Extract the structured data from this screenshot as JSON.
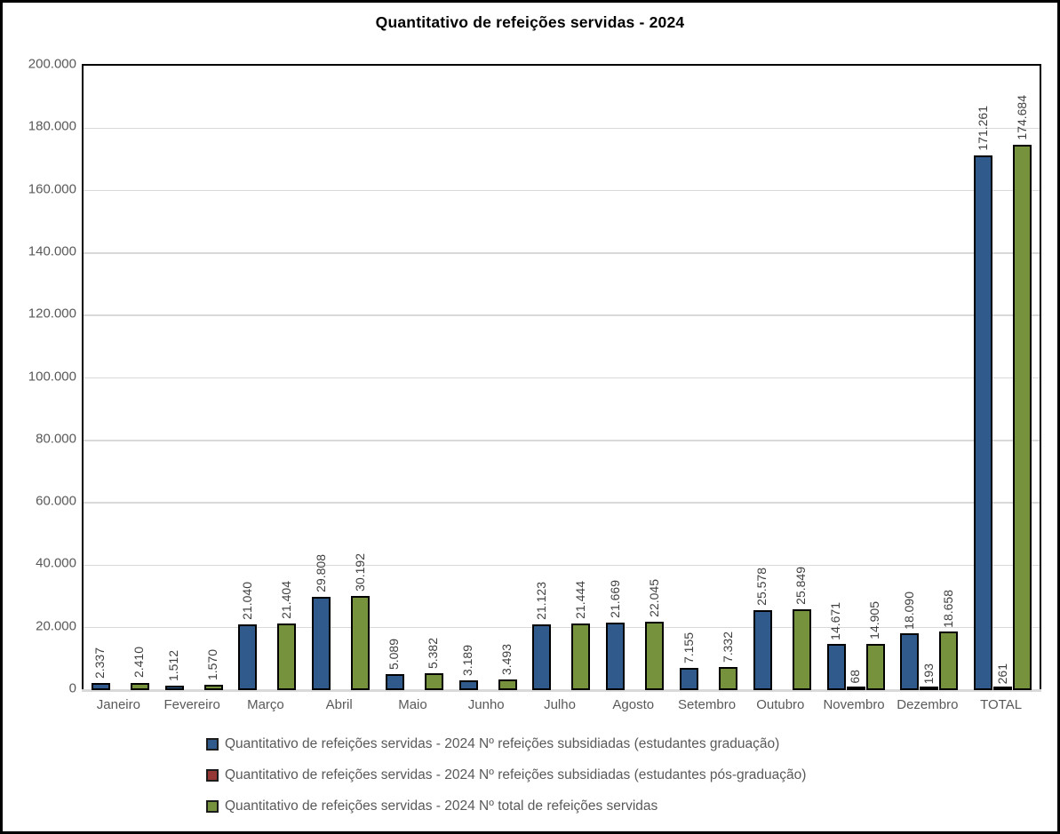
{
  "title": "Quantitativo de refeições servidas - 2024",
  "chart_data": {
    "type": "bar",
    "categories": [
      "Janeiro",
      "Fevereiro",
      "Março",
      "Abril",
      "Maio",
      "Junho",
      "Julho",
      "Agosto",
      "Setembro",
      "Outubro",
      "Novembro",
      "Dezembro",
      "TOTAL"
    ],
    "series": [
      {
        "name": "Quantitativo de refeições servidas - 2024 Nº refeições subsidiadas (estudantes graduação)",
        "color": "#315a8c",
        "values": [
          2337,
          1512,
          21040,
          29808,
          5089,
          3189,
          21123,
          21669,
          7155,
          25578,
          14671,
          18090,
          171261
        ],
        "labels": [
          "2.337",
          "1.512",
          "21.040",
          "29.808",
          "5.089",
          "3.189",
          "21.123",
          "21.669",
          "7.155",
          "25.578",
          "14.671",
          "18.090",
          "171.261"
        ]
      },
      {
        "name": "Quantitativo de refeições servidas - 2024 Nº refeições subsidiadas (estudantes pós-graduação)",
        "color": "#953735",
        "values": [
          0,
          0,
          0,
          0,
          0,
          0,
          0,
          0,
          0,
          0,
          68,
          193,
          261
        ],
        "labels": [
          "",
          "",
          "",
          "",
          "",
          "",
          "",
          "",
          "",
          "",
          "68",
          "193",
          "261"
        ]
      },
      {
        "name": "Quantitativo de refeições servidas - 2024 Nº total de refeições servidas",
        "color": "#76923c",
        "values": [
          2410,
          1570,
          21404,
          30192,
          5382,
          3493,
          21444,
          22045,
          7332,
          25849,
          14905,
          18658,
          174684
        ],
        "labels": [
          "2.410",
          "1.570",
          "21.404",
          "30.192",
          "5.382",
          "3.493",
          "21.444",
          "22.045",
          "7.332",
          "25.849",
          "14.905",
          "18.658",
          "174.684"
        ]
      }
    ],
    "ylim": [
      0,
      200000
    ],
    "yticks": [
      {
        "value": 200000,
        "label": "200.000"
      },
      {
        "value": 180000,
        "label": "180.000"
      },
      {
        "value": 160000,
        "label": "160.000"
      },
      {
        "value": 140000,
        "label": "140.000"
      },
      {
        "value": 120000,
        "label": "120.000"
      },
      {
        "value": 100000,
        "label": "100.000"
      },
      {
        "value": 80000,
        "label": "80.000"
      },
      {
        "value": 60000,
        "label": "60.000"
      },
      {
        "value": 40000,
        "label": "40.000"
      },
      {
        "value": 20000,
        "label": "20.000"
      },
      {
        "value": 0,
        "label": "0"
      }
    ],
    "grid": true,
    "legend_position": "bottom",
    "gridline_color": "#d9d9d9",
    "axis_label_color": "#595959",
    "data_label_color": "#3f3f3f"
  }
}
